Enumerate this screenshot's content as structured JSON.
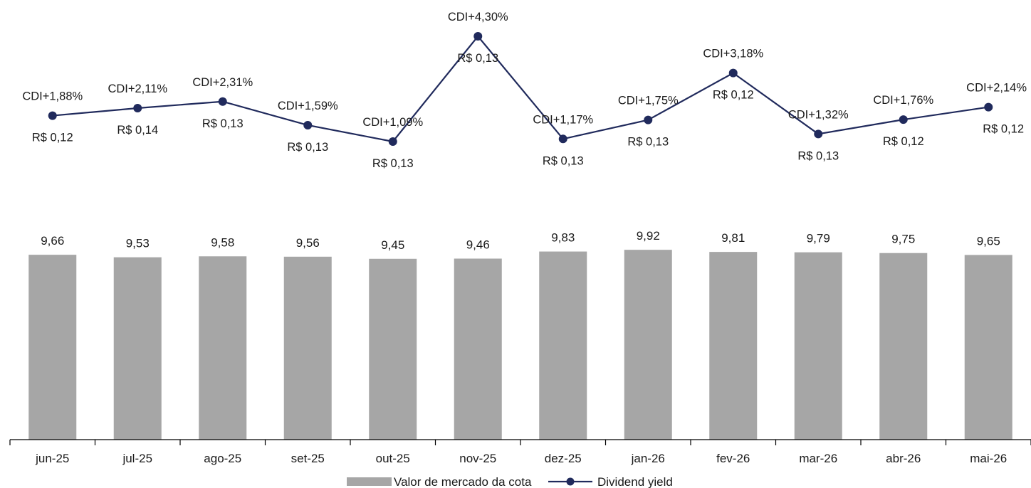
{
  "chart_data": {
    "type": "bar",
    "categories": [
      "jun-25",
      "jul-25",
      "ago-25",
      "set-25",
      "out-25",
      "nov-25",
      "dez-25",
      "jan-26",
      "fev-26",
      "mar-26",
      "abr-26",
      "mai-26"
    ],
    "series": [
      {
        "name": "Valor  de mercado da cota",
        "type": "bar",
        "values": [
          9.66,
          9.53,
          9.58,
          9.56,
          9.45,
          9.46,
          9.83,
          9.92,
          9.81,
          9.79,
          9.75,
          9.65
        ],
        "labels": [
          "9,66",
          "9,53",
          "9,58",
          "9,56",
          "9,45",
          "9,46",
          "9,83",
          "9,92",
          "9,81",
          "9,79",
          "9,75",
          "9,65"
        ],
        "color": "#a6a6a6"
      },
      {
        "name": "Dividend yield",
        "type": "line",
        "values": [
          1.88,
          2.11,
          2.31,
          1.59,
          1.09,
          4.3,
          1.17,
          1.75,
          3.18,
          1.32,
          1.76,
          2.14
        ],
        "labels": [
          "CDI+1,88%",
          "CDI+2,11%",
          "CDI+2,31%",
          "CDI+1,59%",
          "CDI+1,09%",
          "CDI+4,30%",
          "CDI+1,17%",
          "CDI+1,75%",
          "CDI+3,18%",
          "CDI+1,32%",
          "CDI+1,76%",
          "CDI+2,14%"
        ],
        "amounts": [
          "R$ 0,12",
          "R$ 0,14",
          "R$ 0,13",
          "R$ 0,13",
          "R$ 0,13",
          "R$ 0,13",
          "R$ 0,13",
          "R$ 0,13",
          "R$ 0,12",
          "R$ 0,13",
          "R$ 0,12",
          "R$ 0,12"
        ],
        "color": "#202a5c"
      }
    ],
    "legend_position": "bottom-center",
    "grid": false
  }
}
